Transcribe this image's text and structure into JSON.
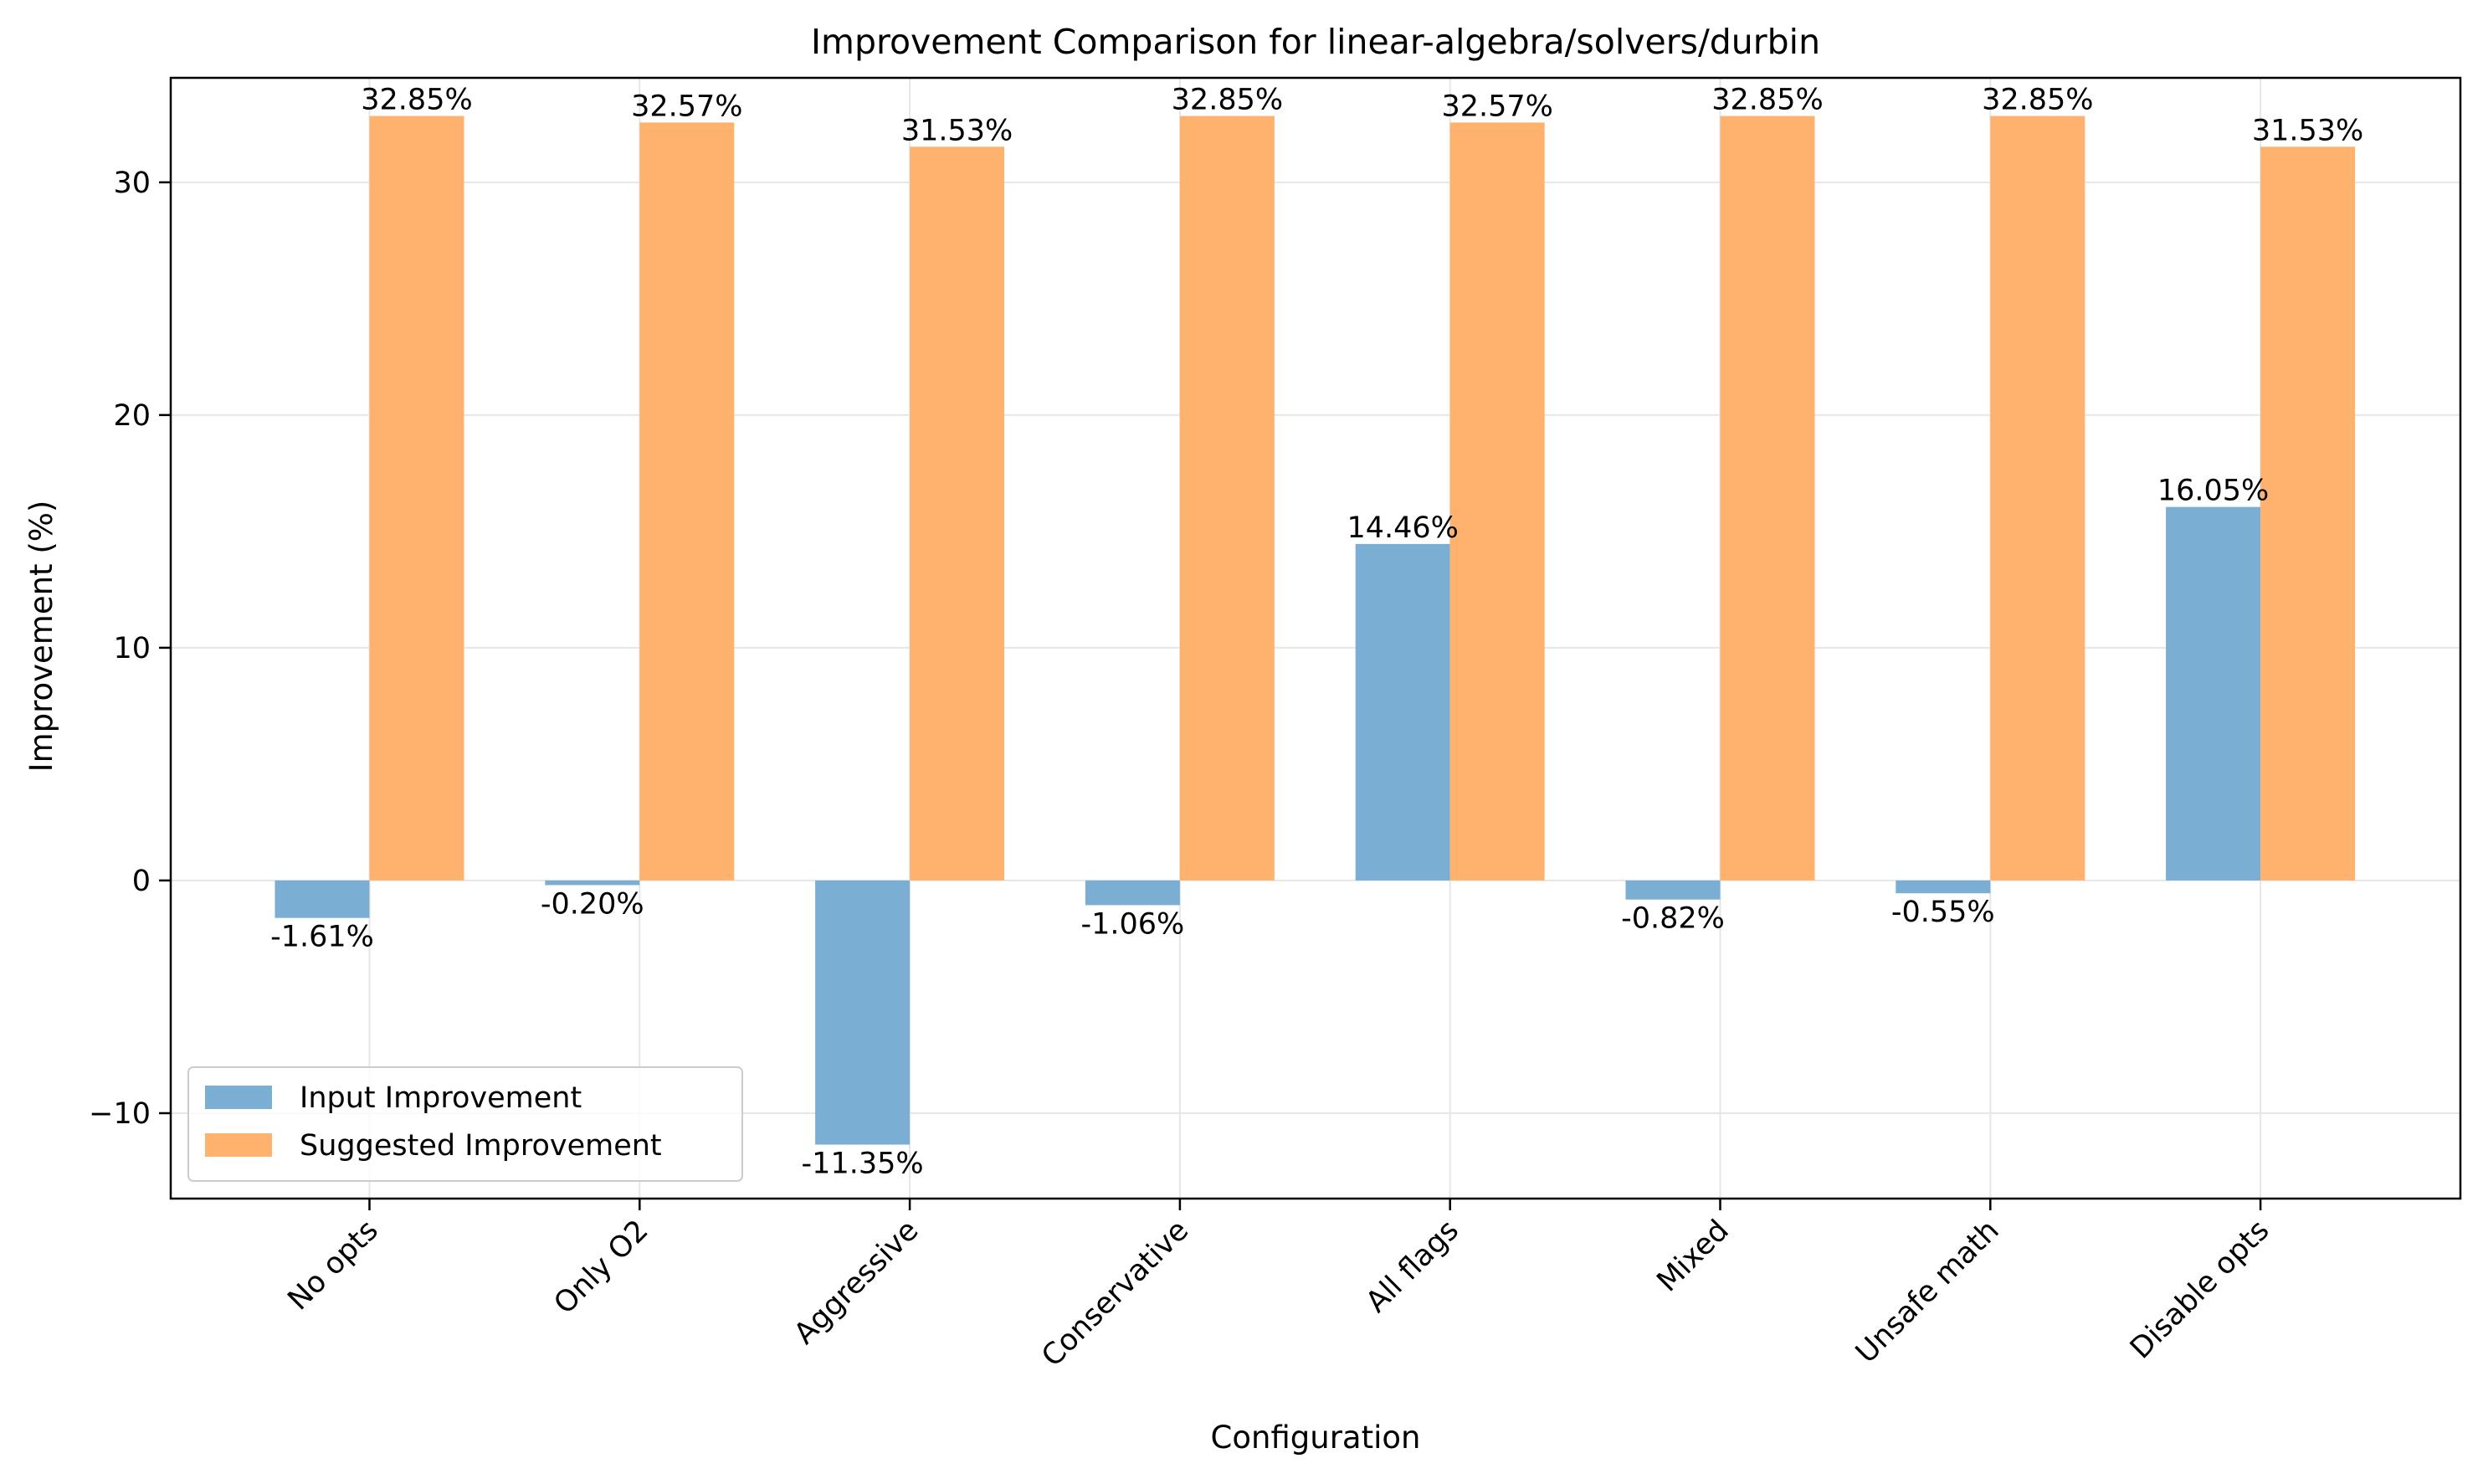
{
  "chart_data": {
    "type": "bar",
    "title": "Improvement Comparison for linear-algebra/solvers/durbin",
    "xlabel": "Configuration",
    "ylabel": "Improvement (%)",
    "categories": [
      "No opts",
      "Only O2",
      "Aggressive",
      "Conservative",
      "All flags",
      "Mixed",
      "Unsafe math",
      "Disable opts"
    ],
    "series": [
      {
        "name": "Input Improvement",
        "color": "#7aaed3",
        "values": [
          -1.61,
          -0.2,
          -11.35,
          -1.06,
          14.46,
          -0.82,
          -0.55,
          16.05
        ],
        "labels": [
          "-1.61%",
          "-0.20%",
          "-11.35%",
          "-1.06%",
          "14.46%",
          "-0.82%",
          "-0.55%",
          "16.05%"
        ]
      },
      {
        "name": "Suggested Improvement",
        "color": "#ffb26e",
        "values": [
          32.85,
          32.57,
          31.53,
          32.85,
          32.57,
          32.85,
          32.85,
          31.53
        ],
        "labels": [
          "32.85%",
          "32.57%",
          "31.53%",
          "32.85%",
          "32.57%",
          "32.85%",
          "32.85%",
          "31.53%"
        ]
      }
    ],
    "ylim": [
      -13.67,
      34.49
    ],
    "yticks": [
      -10,
      0,
      10,
      20,
      30
    ],
    "ytick_labels": [
      "−10",
      "0",
      "10",
      "20",
      "30"
    ],
    "grid": true,
    "legend_position": "lower-left"
  }
}
